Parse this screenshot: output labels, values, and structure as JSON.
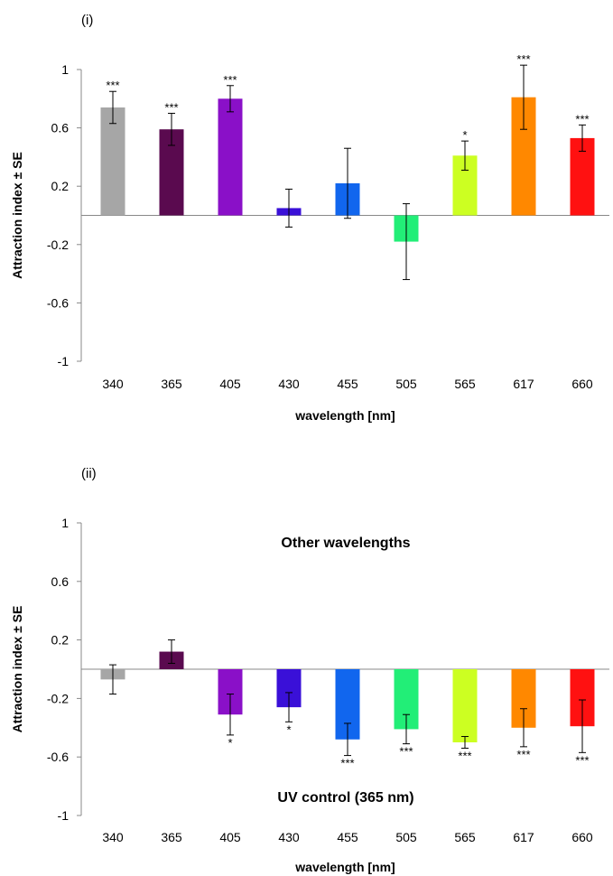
{
  "chart_data": [
    {
      "panel_label": "(i)",
      "type": "bar",
      "xlabel": "wavelength [nm]",
      "ylabel": "Attraction index ± SE",
      "ylim": [
        -1,
        1
      ],
      "yticks": [
        "1",
        "0.6",
        "0.2",
        "-0.2",
        "-0.6",
        "-1"
      ],
      "categories": [
        "340",
        "365",
        "405",
        "430",
        "455",
        "505",
        "565",
        "617",
        "660"
      ],
      "values": [
        0.74,
        0.59,
        0.8,
        0.05,
        0.22,
        -0.18,
        0.41,
        0.81,
        0.53
      ],
      "errors": [
        0.11,
        0.11,
        0.09,
        0.13,
        0.24,
        0.26,
        0.1,
        0.22,
        0.09
      ],
      "significance": [
        "***",
        "***",
        "***",
        "",
        "",
        "",
        "*",
        "***",
        "***"
      ],
      "colors": [
        "#a6a6a6",
        "#5a0a4f",
        "#8a10c8",
        "#3a10d8",
        "#1166ee",
        "#22ee77",
        "#ccff22",
        "#ff8800",
        "#ff1111"
      ],
      "annotations": []
    },
    {
      "panel_label": "(ii)",
      "type": "bar",
      "xlabel": "wavelength [nm]",
      "ylabel": "Attraction index ± SE",
      "ylim": [
        -1,
        1
      ],
      "yticks": [
        "1",
        "0.6",
        "0.2",
        "-0.2",
        "-0.6",
        "-1"
      ],
      "categories": [
        "340",
        "365",
        "405",
        "430",
        "455",
        "505",
        "565",
        "617",
        "660"
      ],
      "values": [
        -0.07,
        0.12,
        -0.31,
        -0.26,
        -0.48,
        -0.41,
        -0.5,
        -0.4,
        -0.39
      ],
      "errors": [
        0.1,
        0.08,
        0.14,
        0.1,
        0.11,
        0.1,
        0.04,
        0.13,
        0.18
      ],
      "significance": [
        "",
        "",
        "*",
        "*",
        "***",
        "***",
        "***",
        "***",
        "***"
      ],
      "colors": [
        "#a6a6a6",
        "#5a0a4f",
        "#8a10c8",
        "#3a10d8",
        "#1166ee",
        "#22ee77",
        "#ccff22",
        "#ff8800",
        "#ff1111"
      ],
      "annotations": [
        "Other wavelengths",
        "UV control (365 nm)"
      ]
    }
  ]
}
